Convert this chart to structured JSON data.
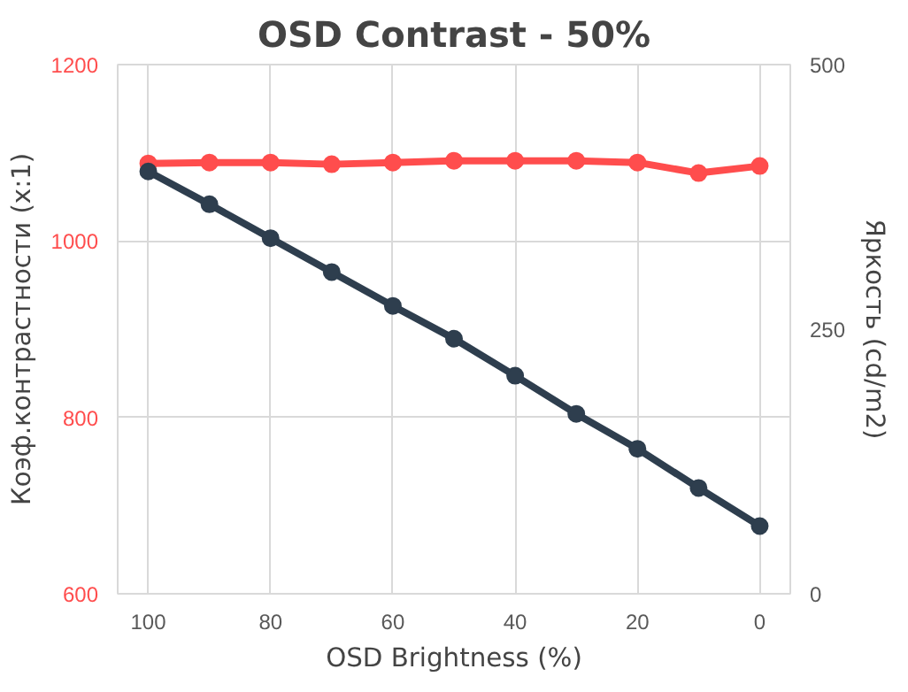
{
  "chart_data": {
    "type": "line",
    "title": "OSD Contrast - 50%",
    "xlabel": "OSD Brightness (%)",
    "ylabel": "Коэф.контрастности (x:1)",
    "y2label": "Яркость (cd/m2)",
    "x": [
      100,
      90,
      80,
      70,
      60,
      50,
      40,
      30,
      20,
      10,
      0
    ],
    "xlim": [
      105,
      -5
    ],
    "xticks": [
      100,
      80,
      60,
      40,
      20,
      0
    ],
    "ylim": [
      600,
      1200
    ],
    "yticks": [
      600,
      800,
      1000,
      1200
    ],
    "y2lim": [
      0,
      500
    ],
    "y2ticks": [
      0,
      250,
      500
    ],
    "grid": true,
    "marker": "circle",
    "line_style": "solid",
    "series": [
      {
        "color": "#ff4d4d",
        "values": [
          1088,
          1089,
          1089,
          1087,
          1089,
          1091,
          1091,
          1091,
          1089,
          1077,
          1085
        ]
      },
      {
        "color": "#2e3e4e",
        "axis": "y2",
        "values": [
          399,
          368,
          336,
          304,
          272,
          241,
          206,
          170,
          137,
          100,
          64
        ]
      }
    ]
  }
}
